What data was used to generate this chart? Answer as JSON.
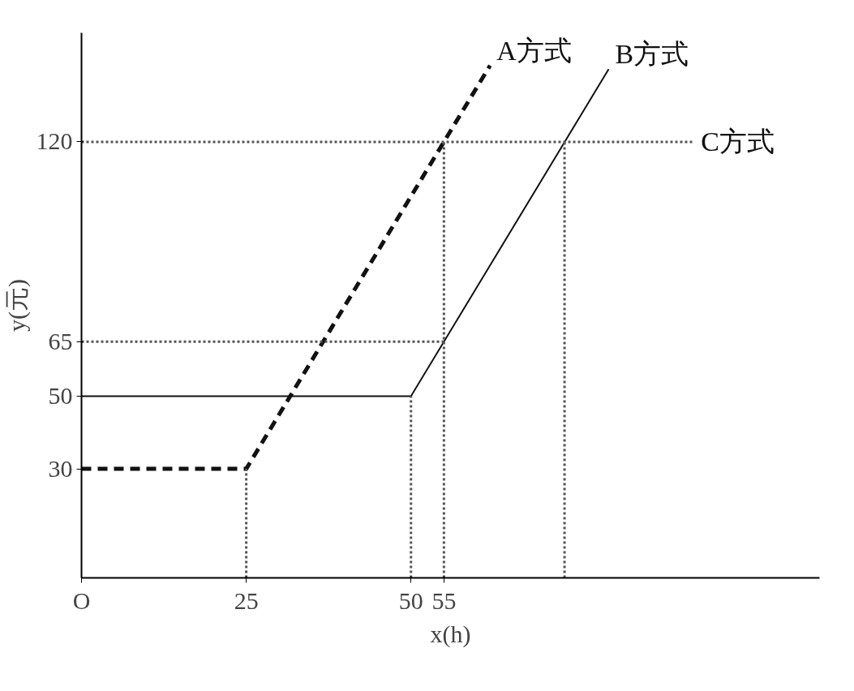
{
  "chart_data": {
    "type": "line",
    "xlabel": "x(h)",
    "ylabel": "y(元)",
    "xlim": [
      0,
      112
    ],
    "ylim": [
      0,
      150
    ],
    "xticks": [
      {
        "value": 0,
        "label": "O"
      },
      25,
      50,
      55
    ],
    "yticks": [
      30,
      50,
      65,
      120
    ],
    "grid": false,
    "marker": "none",
    "series": [
      {
        "name": "A方式",
        "color": "#111111",
        "line_style": "dashed",
        "x": [
          0,
          25,
          62
        ],
        "values": [
          30,
          30,
          141
        ]
      },
      {
        "name": "B方式",
        "color": "#111111",
        "line_style": "solid",
        "x": [
          0,
          50,
          80
        ],
        "values": [
          50,
          50,
          140
        ]
      },
      {
        "name": "C方式",
        "color": "#555555",
        "line_style": "dotted",
        "x": [
          0,
          93
        ],
        "values": [
          120,
          120
        ]
      },
      {
        "color": "#555555",
        "line_style": "dotted",
        "x": [
          25,
          25
        ],
        "values": [
          0,
          30
        ]
      },
      {
        "color": "#555555",
        "line_style": "dotted",
        "x": [
          50,
          50
        ],
        "values": [
          0,
          50
        ]
      },
      {
        "color": "#555555",
        "line_style": "dotted",
        "x": [
          55,
          55
        ],
        "values": [
          0,
          120
        ]
      },
      {
        "color": "#555555",
        "line_style": "dotted",
        "x": [
          73.3,
          73.3
        ],
        "values": [
          0,
          120
        ]
      },
      {
        "color": "#555555",
        "line_style": "dotted",
        "x": [
          0,
          55
        ],
        "values": [
          65,
          65
        ]
      }
    ]
  }
}
